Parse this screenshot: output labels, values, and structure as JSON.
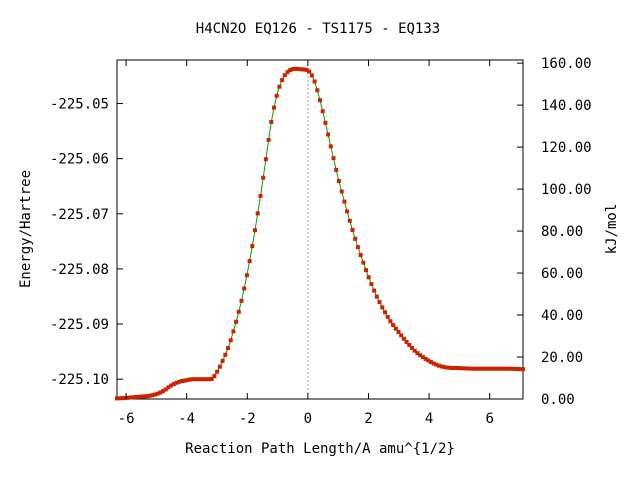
{
  "chart_data": {
    "type": "line",
    "title": "H4CN2O    EQ126 - TS1175 - EQ133",
    "xlabel": "Reaction Path Length/A amu^{1/2}",
    "ylabel": "Energy/Hartree",
    "y2label": "kJ/mol",
    "xlim": [
      -6.3,
      7.1
    ],
    "ylim": [
      -225.1036,
      -225.0421
    ],
    "y2lim": [
      0.0,
      161.5
    ],
    "x_ticks": [
      -6,
      -4,
      -2,
      0,
      2,
      4,
      6
    ],
    "x_tick_labels": [
      "-6",
      "-4",
      "-2",
      "0",
      "2",
      "4",
      "6"
    ],
    "y_ticks": [
      -225.05,
      -225.06,
      -225.07,
      -225.08,
      -225.09,
      -225.1
    ],
    "y_tick_labels": [
      "-225.05",
      "-225.06",
      "-225.07",
      "-225.08",
      "-225.09",
      "-225.10"
    ],
    "y2_ticks": [
      0,
      20,
      40,
      60,
      80,
      100,
      120,
      140,
      160
    ],
    "y2_tick_labels": [
      "0.00",
      "20.00",
      "40.00",
      "60.00",
      "80.00",
      "100.00",
      "120.00",
      "140.00",
      "160.00"
    ],
    "ts_marker_x": 0.0,
    "grid": false,
    "legend": "none",
    "colors": {
      "line": "#00a000",
      "marker": "#cc2200",
      "ts_line": "#999999",
      "axis": "#000000"
    },
    "series": [
      {
        "x": [
          -6.3,
          -6.0,
          -5.6,
          -5.2,
          -4.9,
          -4.7,
          -4.5,
          -4.2,
          -4.0,
          -3.8,
          -3.5,
          -3.2,
          -3.0,
          -2.8,
          -2.6,
          -2.4,
          -2.2,
          -2.0,
          -1.8,
          -1.6,
          -1.4,
          -1.2,
          -1.0,
          -0.8,
          -0.6,
          -0.4,
          -0.2,
          0.0,
          0.2,
          0.4,
          0.6,
          0.8,
          1.0,
          1.2,
          1.4,
          1.6,
          1.8,
          2.0,
          2.2,
          2.4,
          2.6,
          2.8,
          3.0,
          3.3,
          3.6,
          4.0,
          4.3,
          4.6,
          5.0,
          5.5,
          6.0,
          6.5,
          7.1
        ],
        "y": [
          -225.1035,
          -225.1034,
          -225.1032,
          -225.103,
          -225.1025,
          -225.1019,
          -225.1011,
          -225.1004,
          -225.1002,
          -225.1,
          -225.1,
          -225.1,
          -225.0987,
          -225.0965,
          -225.0938,
          -225.0902,
          -225.086,
          -225.0808,
          -225.0748,
          -225.068,
          -225.0606,
          -225.0531,
          -225.048,
          -225.0452,
          -225.044,
          -225.0437,
          -225.0438,
          -225.044,
          -225.0457,
          -225.0494,
          -225.054,
          -225.0588,
          -225.0635,
          -225.0677,
          -225.0716,
          -225.0752,
          -225.0784,
          -225.0814,
          -225.0841,
          -225.0864,
          -225.0884,
          -225.0901,
          -225.0915,
          -225.0935,
          -225.0952,
          -225.0967,
          -225.0975,
          -225.0979,
          -225.098,
          -225.0981,
          -225.0981,
          -225.0981,
          -225.0982
        ]
      }
    ]
  }
}
